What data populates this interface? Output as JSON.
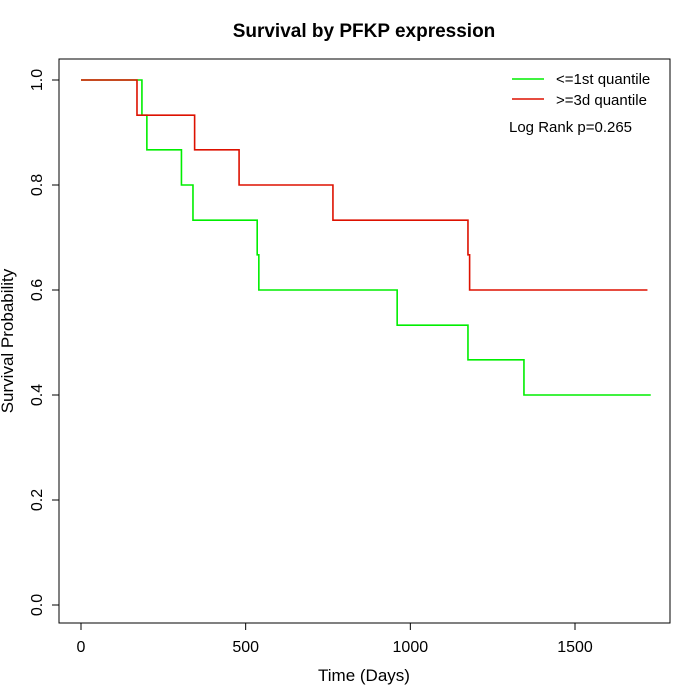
{
  "chart_data": {
    "type": "line",
    "step": true,
    "title": "Survival by PFKP expression",
    "xlabel": "Time (Days)",
    "ylabel": "Survival Probability",
    "xlim": [
      0,
      1730
    ],
    "ylim": [
      0,
      1
    ],
    "x_ticks": [
      0,
      500,
      1000,
      1500
    ],
    "y_ticks": [
      0.0,
      0.2,
      0.4,
      0.6,
      0.8,
      1.0
    ],
    "y_tick_labels": [
      "0.0",
      "0.2",
      "0.4",
      "0.6",
      "0.8",
      "1.0"
    ],
    "grid": false,
    "legend_position": "top-right",
    "annotation": "Log Rank p=0.265",
    "series": [
      {
        "name": "<=1st quantile",
        "color": "#00ee00",
        "x": [
          0,
          185,
          200,
          305,
          340,
          535,
          540,
          960,
          1175,
          1345,
          1730
        ],
        "y": [
          1.0,
          0.933,
          0.867,
          0.8,
          0.733,
          0.667,
          0.6,
          0.533,
          0.467,
          0.4,
          0.4
        ]
      },
      {
        "name": ">=3d quantile",
        "color": "#dd1100",
        "x": [
          0,
          170,
          345,
          480,
          765,
          1175,
          1180,
          1720
        ],
        "y": [
          1.0,
          0.933,
          0.867,
          0.8,
          0.733,
          0.667,
          0.6,
          0.6
        ]
      }
    ]
  }
}
